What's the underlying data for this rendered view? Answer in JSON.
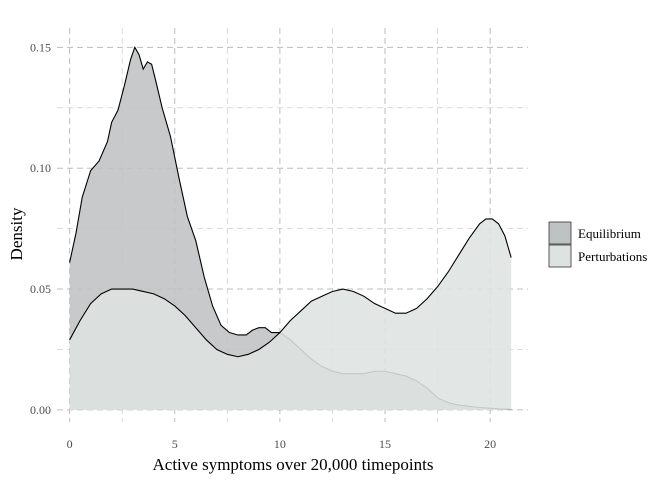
{
  "chart_data": {
    "type": "area",
    "xlabel": "Active symptoms over 20,000 timepoints",
    "ylabel": "Density",
    "xlim": [
      -0.6,
      21.8
    ],
    "ylim": [
      -0.005,
      0.158
    ],
    "x_ticks": [
      0,
      5,
      10,
      15,
      20
    ],
    "x_tick_labels": [
      "0",
      "5",
      "10",
      "15",
      "20"
    ],
    "y_ticks": [
      0.0,
      0.05,
      0.1,
      0.15
    ],
    "y_tick_labels": [
      "0.00",
      "0.05",
      "0.10",
      "0.15"
    ],
    "grid": true,
    "legend_position": "right",
    "series": [
      {
        "name": "Equilibrium",
        "color": "#bfc2c3",
        "points": [
          [
            0,
            0.061
          ],
          [
            0.3,
            0.073
          ],
          [
            0.6,
            0.088
          ],
          [
            1.0,
            0.099
          ],
          [
            1.4,
            0.103
          ],
          [
            1.8,
            0.111
          ],
          [
            2.0,
            0.119
          ],
          [
            2.3,
            0.124
          ],
          [
            2.6,
            0.134
          ],
          [
            2.9,
            0.145
          ],
          [
            3.1,
            0.15
          ],
          [
            3.3,
            0.147
          ],
          [
            3.5,
            0.141
          ],
          [
            3.7,
            0.144
          ],
          [
            3.9,
            0.143
          ],
          [
            4.1,
            0.136
          ],
          [
            4.4,
            0.125
          ],
          [
            4.8,
            0.113
          ],
          [
            5.2,
            0.096
          ],
          [
            5.6,
            0.08
          ],
          [
            6.0,
            0.07
          ],
          [
            6.4,
            0.055
          ],
          [
            6.8,
            0.043
          ],
          [
            7.2,
            0.035
          ],
          [
            7.6,
            0.032
          ],
          [
            8.0,
            0.031
          ],
          [
            8.4,
            0.031
          ],
          [
            8.7,
            0.033
          ],
          [
            9.0,
            0.034
          ],
          [
            9.3,
            0.034
          ],
          [
            9.6,
            0.032
          ],
          [
            10.0,
            0.032
          ],
          [
            10.5,
            0.029
          ],
          [
            11.0,
            0.025
          ],
          [
            11.5,
            0.021
          ],
          [
            12.0,
            0.018
          ],
          [
            12.5,
            0.016
          ],
          [
            13.0,
            0.015
          ],
          [
            13.5,
            0.015
          ],
          [
            14.0,
            0.015
          ],
          [
            14.5,
            0.016
          ],
          [
            15.0,
            0.016
          ],
          [
            15.5,
            0.015
          ],
          [
            16.0,
            0.014
          ],
          [
            16.5,
            0.012
          ],
          [
            17.0,
            0.009
          ],
          [
            17.5,
            0.005
          ],
          [
            18.0,
            0.003
          ],
          [
            18.5,
            0.002
          ],
          [
            19.0,
            0.0015
          ],
          [
            19.5,
            0.001
          ],
          [
            20.0,
            0.0007
          ],
          [
            20.5,
            0.0004
          ],
          [
            21.0,
            0.0002
          ]
        ]
      },
      {
        "name": "Perturbations",
        "color": "#dee2e1",
        "points": [
          [
            0,
            0.029
          ],
          [
            0.5,
            0.037
          ],
          [
            1.0,
            0.044
          ],
          [
            1.5,
            0.048
          ],
          [
            2.0,
            0.05
          ],
          [
            2.5,
            0.05
          ],
          [
            3.0,
            0.05
          ],
          [
            3.5,
            0.049
          ],
          [
            4.0,
            0.048
          ],
          [
            4.5,
            0.046
          ],
          [
            5.0,
            0.043
          ],
          [
            5.5,
            0.039
          ],
          [
            6.0,
            0.034
          ],
          [
            6.5,
            0.029
          ],
          [
            7.0,
            0.025
          ],
          [
            7.5,
            0.023
          ],
          [
            8.0,
            0.022
          ],
          [
            8.5,
            0.023
          ],
          [
            9.0,
            0.025
          ],
          [
            9.5,
            0.028
          ],
          [
            10.0,
            0.032
          ],
          [
            10.5,
            0.037
          ],
          [
            11.0,
            0.041
          ],
          [
            11.5,
            0.045
          ],
          [
            12.0,
            0.047
          ],
          [
            12.5,
            0.049
          ],
          [
            13.0,
            0.05
          ],
          [
            13.5,
            0.049
          ],
          [
            14.0,
            0.047
          ],
          [
            14.5,
            0.044
          ],
          [
            15.0,
            0.042
          ],
          [
            15.5,
            0.04
          ],
          [
            16.0,
            0.04
          ],
          [
            16.5,
            0.042
          ],
          [
            17.0,
            0.046
          ],
          [
            17.5,
            0.051
          ],
          [
            18.0,
            0.057
          ],
          [
            18.5,
            0.064
          ],
          [
            19.0,
            0.071
          ],
          [
            19.5,
            0.077
          ],
          [
            19.8,
            0.079
          ],
          [
            20.1,
            0.079
          ],
          [
            20.4,
            0.077
          ],
          [
            20.7,
            0.072
          ],
          [
            21.0,
            0.063
          ]
        ]
      }
    ]
  }
}
